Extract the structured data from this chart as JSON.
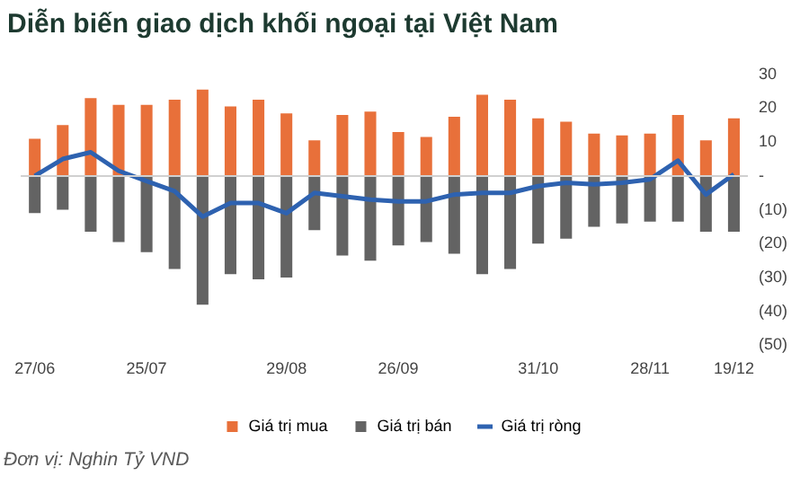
{
  "chart_data": {
    "type": "bar",
    "title": "Diễn biến giao dịch khối ngoại tại Việt Nam",
    "categories": [
      "27/06",
      null,
      null,
      null,
      "25/07",
      null,
      null,
      null,
      null,
      "29/08",
      null,
      null,
      null,
      "26/09",
      null,
      null,
      null,
      null,
      "31/10",
      null,
      null,
      null,
      "28/11",
      null,
      null,
      "19/12"
    ],
    "series": [
      {
        "name": "Giá trị mua",
        "color": "#e8703a",
        "values": [
          11,
          15,
          23,
          21,
          21,
          22.5,
          25.5,
          20.5,
          22.5,
          18.5,
          10.5,
          18,
          19,
          13,
          11.5,
          17.5,
          24,
          22.5,
          17,
          16,
          12.5,
          12,
          12.5,
          18,
          10.5,
          17
        ]
      },
      {
        "name": "Giá trị bán",
        "color": "#636363",
        "values": [
          -11,
          -10,
          -16.5,
          -19.5,
          -22.5,
          -27.5,
          -38,
          -29,
          -30.5,
          -30,
          -16,
          -23.5,
          -25,
          -20.5,
          -19.5,
          -23,
          -29,
          -27.5,
          -20,
          -18.5,
          -15,
          -14,
          -13.5,
          -13.5,
          -16.5,
          -16.5
        ]
      },
      {
        "name": "Giá trị ròng",
        "type": "line",
        "color": "#2e62b0",
        "values": [
          0,
          5,
          7,
          1.5,
          -1.5,
          -4.5,
          -12,
          -8,
          -8,
          -11,
          -5,
          -6,
          -7,
          -7.5,
          -7.5,
          -5.5,
          -5,
          -5,
          -3,
          -2,
          -2.5,
          -2,
          -1,
          4.5,
          -5.5,
          0.5
        ]
      }
    ],
    "stacked": true,
    "ylim": [
      -50,
      30
    ],
    "yticks": [
      30,
      20,
      10,
      {
        "value": 0,
        "label": "-"
      },
      {
        "value": -10,
        "label": "(10)"
      },
      {
        "value": -20,
        "label": "(20)"
      },
      {
        "value": -30,
        "label": "(30)"
      },
      {
        "value": -40,
        "label": "(40)"
      },
      {
        "value": -50,
        "label": "(50)"
      }
    ],
    "grid": false,
    "ref_lines": [
      {
        "axis": "y",
        "value": 0,
        "color": "#d0d0d0"
      }
    ],
    "legend": "bottom",
    "marker": "none",
    "annotations": [
      "Đơn vị: Nghin Tỷ VND"
    ]
  }
}
